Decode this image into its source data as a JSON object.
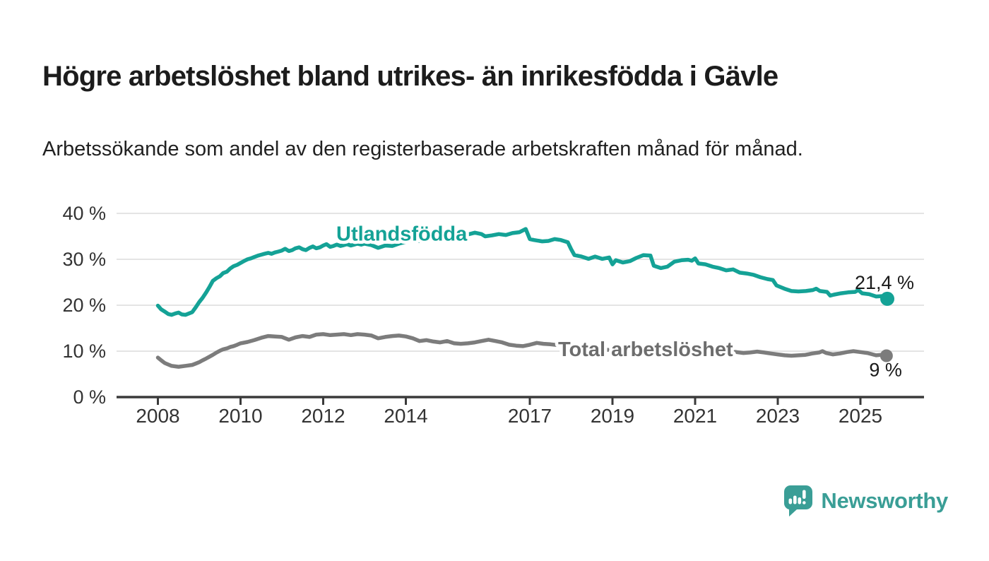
{
  "title": "Högre arbetslöshet bland utrikes- än inrikesfödda i Gävle",
  "subtitle": "Arbetssökande som andel av den registerbaserade arbetskraften månad för månad.",
  "branding": {
    "label": "Newsworthy",
    "color": "#3a9e96"
  },
  "colors": {
    "background": "#ffffff",
    "title_text": "#1c1c1c",
    "subtitle_text": "#212121",
    "axis_text": "#333333",
    "grid_line": "#dcdcdc",
    "axis_line": "#3a3a3a",
    "foreign_born_line": "#14a296",
    "total_line": "#7c7c7c",
    "total_label": "#6d6d6d",
    "end_value_text": "#1a1a1a"
  },
  "chart_data": {
    "type": "line",
    "title": "Högre arbetslöshet bland utrikes- än inrikesfödda i Gävle",
    "subtitle": "Arbetssökande som andel av den registerbaserade arbetskraften månad för månad.",
    "unit": "percent",
    "grid": true,
    "x_axis": {
      "range": [
        2007.0,
        2026.55
      ],
      "ticks": [
        {
          "v": 2008,
          "label": "2008"
        },
        {
          "v": 2010,
          "label": "2010"
        },
        {
          "v": 2012,
          "label": "2012"
        },
        {
          "v": 2014,
          "label": "2014"
        },
        {
          "v": 2017,
          "label": "2017"
        },
        {
          "v": 2019,
          "label": "2019"
        },
        {
          "v": 2021,
          "label": "2021"
        },
        {
          "v": 2023,
          "label": "2023"
        },
        {
          "v": 2025,
          "label": "2025"
        }
      ]
    },
    "y_axis": {
      "range": [
        0,
        40
      ],
      "ticks": [
        {
          "v": 0,
          "label": "0 %"
        },
        {
          "v": 10,
          "label": "10 %"
        },
        {
          "v": 20,
          "label": "20 %"
        },
        {
          "v": 30,
          "label": "30 %"
        },
        {
          "v": 40,
          "label": "40 %"
        }
      ]
    },
    "series": [
      {
        "name": "Utlandsfödda",
        "color": "#14a296",
        "label_color": "#14a296",
        "label_anchor": {
          "x": 2013.9,
          "y": 35.6
        },
        "end_label": "21,4 %",
        "end_value": 21.4,
        "end_label_offset": {
          "dx": 38,
          "dy": -14
        },
        "dot_radius": 10,
        "points": [
          [
            2008.0,
            19.9
          ],
          [
            2008.08,
            19.1
          ],
          [
            2008.17,
            18.6
          ],
          [
            2008.25,
            18.1
          ],
          [
            2008.33,
            17.9
          ],
          [
            2008.42,
            18.2
          ],
          [
            2008.5,
            18.4
          ],
          [
            2008.58,
            18.0
          ],
          [
            2008.67,
            17.9
          ],
          [
            2008.75,
            18.2
          ],
          [
            2008.83,
            18.5
          ],
          [
            2008.92,
            19.6
          ],
          [
            2009.0,
            20.7
          ],
          [
            2009.08,
            21.6
          ],
          [
            2009.17,
            22.8
          ],
          [
            2009.25,
            24.0
          ],
          [
            2009.33,
            25.3
          ],
          [
            2009.42,
            25.9
          ],
          [
            2009.5,
            26.3
          ],
          [
            2009.58,
            27.0
          ],
          [
            2009.67,
            27.3
          ],
          [
            2009.75,
            28.0
          ],
          [
            2009.83,
            28.5
          ],
          [
            2009.92,
            28.8
          ],
          [
            2010.0,
            29.2
          ],
          [
            2010.08,
            29.6
          ],
          [
            2010.17,
            30.0
          ],
          [
            2010.25,
            30.2
          ],
          [
            2010.33,
            30.5
          ],
          [
            2010.42,
            30.8
          ],
          [
            2010.5,
            31.0
          ],
          [
            2010.58,
            31.2
          ],
          [
            2010.67,
            31.4
          ],
          [
            2010.75,
            31.2
          ],
          [
            2010.83,
            31.5
          ],
          [
            2010.92,
            31.7
          ],
          [
            2011.0,
            31.9
          ],
          [
            2011.08,
            32.3
          ],
          [
            2011.17,
            31.8
          ],
          [
            2011.25,
            32.0
          ],
          [
            2011.33,
            32.4
          ],
          [
            2011.42,
            32.6
          ],
          [
            2011.5,
            32.2
          ],
          [
            2011.58,
            32.0
          ],
          [
            2011.67,
            32.5
          ],
          [
            2011.75,
            32.8
          ],
          [
            2011.83,
            32.4
          ],
          [
            2011.92,
            32.6
          ],
          [
            2012.0,
            33.0
          ],
          [
            2012.08,
            33.3
          ],
          [
            2012.17,
            32.7
          ],
          [
            2012.25,
            32.9
          ],
          [
            2012.33,
            33.2
          ],
          [
            2012.42,
            32.9
          ],
          [
            2012.5,
            33.1
          ],
          [
            2012.58,
            33.3
          ],
          [
            2012.67,
            33.0
          ],
          [
            2012.75,
            33.2
          ],
          [
            2012.83,
            33.4
          ],
          [
            2012.92,
            33.2
          ],
          [
            2013.0,
            33.4
          ],
          [
            2013.17,
            33.1
          ],
          [
            2013.33,
            32.5
          ],
          [
            2013.5,
            33.0
          ],
          [
            2013.67,
            32.9
          ],
          [
            2013.83,
            33.4
          ],
          [
            2014.0,
            33.8
          ],
          [
            2014.17,
            34.2
          ],
          [
            2014.33,
            34.0
          ],
          [
            2014.5,
            34.4
          ],
          [
            2014.67,
            34.7
          ],
          [
            2014.83,
            35.0
          ],
          [
            2015.0,
            34.8
          ],
          [
            2015.17,
            35.2
          ],
          [
            2015.33,
            35.0
          ],
          [
            2015.5,
            35.4
          ],
          [
            2015.67,
            35.8
          ],
          [
            2015.83,
            35.5
          ],
          [
            2015.92,
            35.0
          ],
          [
            2016.08,
            35.2
          ],
          [
            2016.25,
            35.5
          ],
          [
            2016.42,
            35.3
          ],
          [
            2016.58,
            35.7
          ],
          [
            2016.75,
            35.9
          ],
          [
            2016.9,
            36.6
          ],
          [
            2017.0,
            34.4
          ],
          [
            2017.1,
            34.2
          ],
          [
            2017.3,
            33.9
          ],
          [
            2017.45,
            34.0
          ],
          [
            2017.6,
            34.4
          ],
          [
            2017.75,
            34.2
          ],
          [
            2017.92,
            33.7
          ],
          [
            2018.0,
            32.2
          ],
          [
            2018.08,
            30.9
          ],
          [
            2018.25,
            30.6
          ],
          [
            2018.42,
            30.1
          ],
          [
            2018.58,
            30.6
          ],
          [
            2018.75,
            30.1
          ],
          [
            2018.92,
            30.4
          ],
          [
            2019.0,
            28.9
          ],
          [
            2019.08,
            29.8
          ],
          [
            2019.25,
            29.3
          ],
          [
            2019.42,
            29.6
          ],
          [
            2019.58,
            30.3
          ],
          [
            2019.75,
            30.9
          ],
          [
            2019.92,
            30.8
          ],
          [
            2020.0,
            28.6
          ],
          [
            2020.17,
            28.1
          ],
          [
            2020.33,
            28.4
          ],
          [
            2020.5,
            29.5
          ],
          [
            2020.67,
            29.8
          ],
          [
            2020.83,
            29.9
          ],
          [
            2020.92,
            29.7
          ],
          [
            2021.0,
            30.2
          ],
          [
            2021.08,
            29.1
          ],
          [
            2021.25,
            28.9
          ],
          [
            2021.42,
            28.4
          ],
          [
            2021.58,
            28.1
          ],
          [
            2021.75,
            27.6
          ],
          [
            2021.92,
            27.8
          ],
          [
            2022.08,
            27.1
          ],
          [
            2022.25,
            26.9
          ],
          [
            2022.42,
            26.6
          ],
          [
            2022.58,
            26.1
          ],
          [
            2022.75,
            25.7
          ],
          [
            2022.88,
            25.5
          ],
          [
            2022.97,
            24.3
          ],
          [
            2023.16,
            23.6
          ],
          [
            2023.33,
            23.1
          ],
          [
            2023.5,
            23.0
          ],
          [
            2023.68,
            23.1
          ],
          [
            2023.85,
            23.3
          ],
          [
            2023.93,
            23.6
          ],
          [
            2024.02,
            23.1
          ],
          [
            2024.19,
            22.9
          ],
          [
            2024.27,
            22.1
          ],
          [
            2024.36,
            22.3
          ],
          [
            2024.53,
            22.6
          ],
          [
            2024.7,
            22.8
          ],
          [
            2024.87,
            22.9
          ],
          [
            2024.95,
            23.3
          ],
          [
            2025.04,
            22.6
          ],
          [
            2025.21,
            22.4
          ],
          [
            2025.38,
            21.9
          ],
          [
            2025.55,
            22.0
          ],
          [
            2025.65,
            21.4
          ]
        ]
      },
      {
        "name": "Total arbetslöshet",
        "color": "#7c7c7c",
        "label_color": "#6d6d6d",
        "label_anchor": {
          "x": 2019.8,
          "y": 10.45
        },
        "end_label": "9 %",
        "end_value": 9,
        "end_label_offset": {
          "dx": 22,
          "dy": 29
        },
        "dot_radius": 9,
        "points": [
          [
            2008.0,
            8.6
          ],
          [
            2008.08,
            8.0
          ],
          [
            2008.17,
            7.4
          ],
          [
            2008.25,
            7.1
          ],
          [
            2008.33,
            6.8
          ],
          [
            2008.42,
            6.7
          ],
          [
            2008.5,
            6.6
          ],
          [
            2008.58,
            6.7
          ],
          [
            2008.67,
            6.8
          ],
          [
            2008.83,
            7.0
          ],
          [
            2008.92,
            7.3
          ],
          [
            2009.0,
            7.6
          ],
          [
            2009.08,
            8.0
          ],
          [
            2009.17,
            8.4
          ],
          [
            2009.25,
            8.8
          ],
          [
            2009.33,
            9.2
          ],
          [
            2009.42,
            9.7
          ],
          [
            2009.5,
            10.1
          ],
          [
            2009.58,
            10.4
          ],
          [
            2009.67,
            10.6
          ],
          [
            2009.75,
            10.9
          ],
          [
            2009.83,
            11.1
          ],
          [
            2009.92,
            11.4
          ],
          [
            2010.0,
            11.7
          ],
          [
            2010.17,
            12.0
          ],
          [
            2010.33,
            12.4
          ],
          [
            2010.5,
            12.9
          ],
          [
            2010.67,
            13.3
          ],
          [
            2010.83,
            13.2
          ],
          [
            2011.0,
            13.1
          ],
          [
            2011.17,
            12.5
          ],
          [
            2011.33,
            13.0
          ],
          [
            2011.5,
            13.3
          ],
          [
            2011.67,
            13.1
          ],
          [
            2011.83,
            13.6
          ],
          [
            2012.0,
            13.7
          ],
          [
            2012.17,
            13.5
          ],
          [
            2012.33,
            13.6
          ],
          [
            2012.5,
            13.7
          ],
          [
            2012.67,
            13.5
          ],
          [
            2012.83,
            13.7
          ],
          [
            2013.0,
            13.6
          ],
          [
            2013.17,
            13.4
          ],
          [
            2013.33,
            12.8
          ],
          [
            2013.5,
            13.1
          ],
          [
            2013.67,
            13.3
          ],
          [
            2013.83,
            13.4
          ],
          [
            2014.0,
            13.2
          ],
          [
            2014.17,
            12.8
          ],
          [
            2014.33,
            12.2
          ],
          [
            2014.5,
            12.4
          ],
          [
            2014.67,
            12.1
          ],
          [
            2014.83,
            11.9
          ],
          [
            2015.0,
            12.2
          ],
          [
            2015.17,
            11.7
          ],
          [
            2015.33,
            11.6
          ],
          [
            2015.5,
            11.7
          ],
          [
            2015.67,
            11.9
          ],
          [
            2015.83,
            12.2
          ],
          [
            2016.0,
            12.5
          ],
          [
            2016.17,
            12.2
          ],
          [
            2016.33,
            11.9
          ],
          [
            2016.5,
            11.4
          ],
          [
            2016.67,
            11.2
          ],
          [
            2016.83,
            11.1
          ],
          [
            2017.0,
            11.4
          ],
          [
            2017.17,
            11.8
          ],
          [
            2017.33,
            11.6
          ],
          [
            2017.5,
            11.5
          ],
          [
            2018.0,
            11.0
          ],
          [
            2018.5,
            10.6
          ],
          [
            2019.0,
            10.2
          ],
          [
            2019.5,
            10.0
          ],
          [
            2020.0,
            10.3
          ],
          [
            2020.5,
            10.8
          ],
          [
            2021.0,
            10.6
          ],
          [
            2021.5,
            10.2
          ],
          [
            2022.0,
            9.8
          ],
          [
            2022.17,
            9.6
          ],
          [
            2022.33,
            9.7
          ],
          [
            2022.5,
            9.9
          ],
          [
            2022.67,
            9.7
          ],
          [
            2022.83,
            9.5
          ],
          [
            2023.0,
            9.3
          ],
          [
            2023.17,
            9.1
          ],
          [
            2023.33,
            9.0
          ],
          [
            2023.5,
            9.1
          ],
          [
            2023.67,
            9.2
          ],
          [
            2023.83,
            9.5
          ],
          [
            2024.0,
            9.7
          ],
          [
            2024.08,
            10.0
          ],
          [
            2024.17,
            9.6
          ],
          [
            2024.33,
            9.3
          ],
          [
            2024.5,
            9.5
          ],
          [
            2024.67,
            9.8
          ],
          [
            2024.83,
            10.0
          ],
          [
            2025.0,
            9.8
          ],
          [
            2025.17,
            9.6
          ],
          [
            2025.38,
            9.1
          ],
          [
            2025.5,
            9.2
          ],
          [
            2025.63,
            9.0
          ]
        ]
      }
    ]
  }
}
